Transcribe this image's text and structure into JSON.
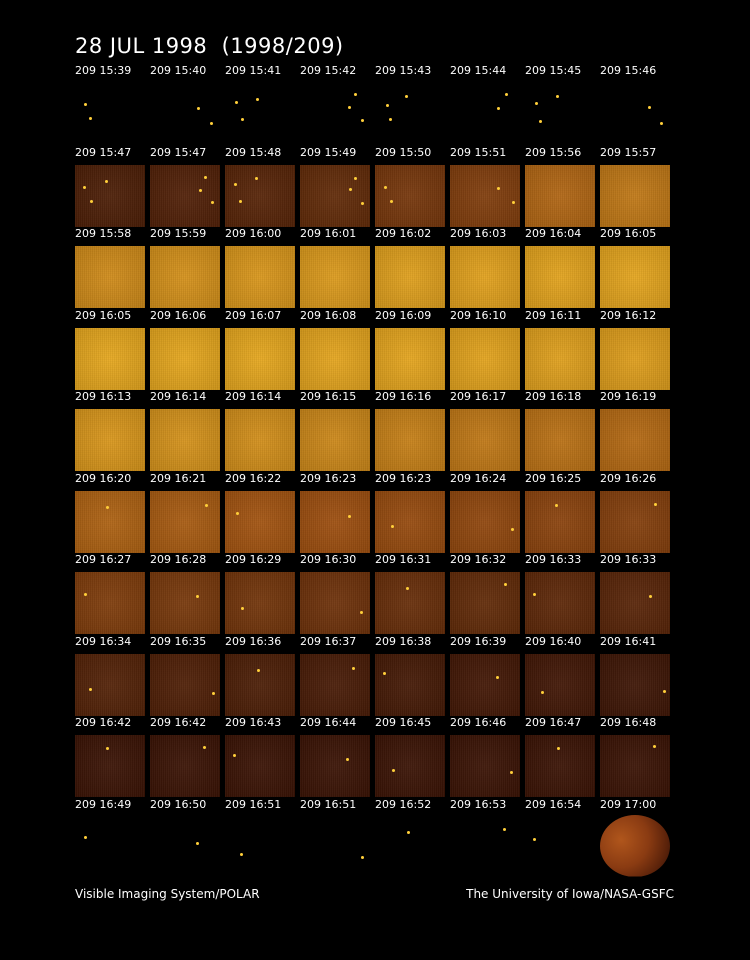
{
  "title": "28 JUL 1998  (1998/209)",
  "footer": {
    "left": "Visible Imaging System/POLAR",
    "right": "The University of Iowa/NASA-GSFC"
  },
  "frames": [
    {
      "label": "209 15:39",
      "brightness": 0.0,
      "dots": 2
    },
    {
      "label": "209 15:40",
      "brightness": 0.0,
      "dots": 2
    },
    {
      "label": "209 15:41",
      "brightness": 0.0,
      "dots": 3
    },
    {
      "label": "209 15:42",
      "brightness": 0.0,
      "dots": 3
    },
    {
      "label": "209 15:43",
      "brightness": 0.0,
      "dots": 3
    },
    {
      "label": "209 15:44",
      "brightness": 0.0,
      "dots": 2
    },
    {
      "label": "209 15:45",
      "brightness": 0.0,
      "dots": 3
    },
    {
      "label": "209 15:46",
      "brightness": 0.0,
      "dots": 2
    },
    {
      "label": "209 15:47",
      "brightness": 0.1,
      "dots": 3
    },
    {
      "label": "209 15:47",
      "brightness": 0.12,
      "dots": 3
    },
    {
      "label": "209 15:48",
      "brightness": 0.15,
      "dots": 3
    },
    {
      "label": "209 15:49",
      "brightness": 0.2,
      "dots": 3
    },
    {
      "label": "209 15:50",
      "brightness": 0.3,
      "dots": 2
    },
    {
      "label": "209 15:51",
      "brightness": 0.35,
      "dots": 2
    },
    {
      "label": "209 15:56",
      "brightness": 0.62,
      "dots": 0
    },
    {
      "label": "209 15:57",
      "brightness": 0.72,
      "dots": 0
    },
    {
      "label": "209 15:58",
      "brightness": 0.82,
      "dots": 0
    },
    {
      "label": "209 15:59",
      "brightness": 0.85,
      "dots": 0
    },
    {
      "label": "209 16:00",
      "brightness": 0.88,
      "dots": 0
    },
    {
      "label": "209 16:01",
      "brightness": 0.9,
      "dots": 0
    },
    {
      "label": "209 16:02",
      "brightness": 0.93,
      "dots": 0
    },
    {
      "label": "209 16:03",
      "brightness": 0.94,
      "dots": 0
    },
    {
      "label": "209 16:04",
      "brightness": 0.95,
      "dots": 0
    },
    {
      "label": "209 16:05",
      "brightness": 0.96,
      "dots": 0
    },
    {
      "label": "209 16:05",
      "brightness": 0.97,
      "dots": 0
    },
    {
      "label": "209 16:06",
      "brightness": 0.97,
      "dots": 0
    },
    {
      "label": "209 16:07",
      "brightness": 0.97,
      "dots": 0
    },
    {
      "label": "209 16:08",
      "brightness": 0.96,
      "dots": 0
    },
    {
      "label": "209 16:09",
      "brightness": 0.96,
      "dots": 0
    },
    {
      "label": "209 16:10",
      "brightness": 0.95,
      "dots": 0
    },
    {
      "label": "209 16:11",
      "brightness": 0.93,
      "dots": 0
    },
    {
      "label": "209 16:12",
      "brightness": 0.92,
      "dots": 0
    },
    {
      "label": "209 16:13",
      "brightness": 0.88,
      "dots": 0
    },
    {
      "label": "209 16:14",
      "brightness": 0.86,
      "dots": 0
    },
    {
      "label": "209 16:14",
      "brightness": 0.84,
      "dots": 0
    },
    {
      "label": "209 16:15",
      "brightness": 0.8,
      "dots": 0
    },
    {
      "label": "209 16:16",
      "brightness": 0.76,
      "dots": 0
    },
    {
      "label": "209 16:17",
      "brightness": 0.72,
      "dots": 0
    },
    {
      "label": "209 16:18",
      "brightness": 0.68,
      "dots": 0
    },
    {
      "label": "209 16:19",
      "brightness": 0.64,
      "dots": 0
    },
    {
      "label": "209 16:20",
      "brightness": 0.6,
      "dots": 1
    },
    {
      "label": "209 16:21",
      "brightness": 0.56,
      "dots": 1
    },
    {
      "label": "209 16:22",
      "brightness": 0.52,
      "dots": 1
    },
    {
      "label": "209 16:23",
      "brightness": 0.49,
      "dots": 1
    },
    {
      "label": "209 16:23",
      "brightness": 0.46,
      "dots": 1
    },
    {
      "label": "209 16:24",
      "brightness": 0.43,
      "dots": 1
    },
    {
      "label": "209 16:25",
      "brightness": 0.4,
      "dots": 1
    },
    {
      "label": "209 16:26",
      "brightness": 0.37,
      "dots": 1
    },
    {
      "label": "209 16:27",
      "brightness": 0.34,
      "dots": 1
    },
    {
      "label": "209 16:28",
      "brightness": 0.31,
      "dots": 1
    },
    {
      "label": "209 16:29",
      "brightness": 0.28,
      "dots": 1
    },
    {
      "label": "209 16:30",
      "brightness": 0.26,
      "dots": 1
    },
    {
      "label": "209 16:31",
      "brightness": 0.23,
      "dots": 1
    },
    {
      "label": "209 16:32",
      "brightness": 0.2,
      "dots": 1
    },
    {
      "label": "209 16:33",
      "brightness": 0.18,
      "dots": 1
    },
    {
      "label": "209 16:33",
      "brightness": 0.16,
      "dots": 1
    },
    {
      "label": "209 16:34",
      "brightness": 0.13,
      "dots": 1
    },
    {
      "label": "209 16:35",
      "brightness": 0.11,
      "dots": 1
    },
    {
      "label": "209 16:36",
      "brightness": 0.1,
      "dots": 1
    },
    {
      "label": "209 16:37",
      "brightness": 0.08,
      "dots": 1
    },
    {
      "label": "209 16:38",
      "brightness": 0.06,
      "dots": 1
    },
    {
      "label": "209 16:39",
      "brightness": 0.05,
      "dots": 1
    },
    {
      "label": "209 16:40",
      "brightness": 0.04,
      "dots": 1
    },
    {
      "label": "209 16:41",
      "brightness": 0.03,
      "dots": 1
    },
    {
      "label": "209 16:42",
      "brightness": 0.01,
      "dots": 1
    },
    {
      "label": "209 16:42",
      "brightness": 0.01,
      "dots": 1
    },
    {
      "label": "209 16:43",
      "brightness": 0.01,
      "dots": 1
    },
    {
      "label": "209 16:44",
      "brightness": 0.01,
      "dots": 1
    },
    {
      "label": "209 16:45",
      "brightness": 0.01,
      "dots": 1
    },
    {
      "label": "209 16:46",
      "brightness": 0.01,
      "dots": 1
    },
    {
      "label": "209 16:47",
      "brightness": 0.01,
      "dots": 1
    },
    {
      "label": "209 16:48",
      "brightness": 0.01,
      "dots": 1
    },
    {
      "label": "209 16:49",
      "brightness": 0.0,
      "dots": 1
    },
    {
      "label": "209 16:50",
      "brightness": 0.0,
      "dots": 1
    },
    {
      "label": "209 16:51",
      "brightness": 0.0,
      "dots": 1
    },
    {
      "label": "209 16:51",
      "brightness": 0.0,
      "dots": 1
    },
    {
      "label": "209 16:52",
      "brightness": 0.0,
      "dots": 1
    },
    {
      "label": "209 16:53",
      "brightness": 0.0,
      "dots": 1
    },
    {
      "label": "209 16:54",
      "brightness": 0.0,
      "dots": 1
    },
    {
      "label": "209 17:00",
      "brightness": 0.0,
      "dots": 0,
      "earth_disk": true
    }
  ],
  "colors": {
    "background": "#000000",
    "glow_dark": "#3a1204",
    "glow_mid": "#a5520f",
    "glow_bright": "#f2b21f",
    "star": "#ffcf3a"
  }
}
